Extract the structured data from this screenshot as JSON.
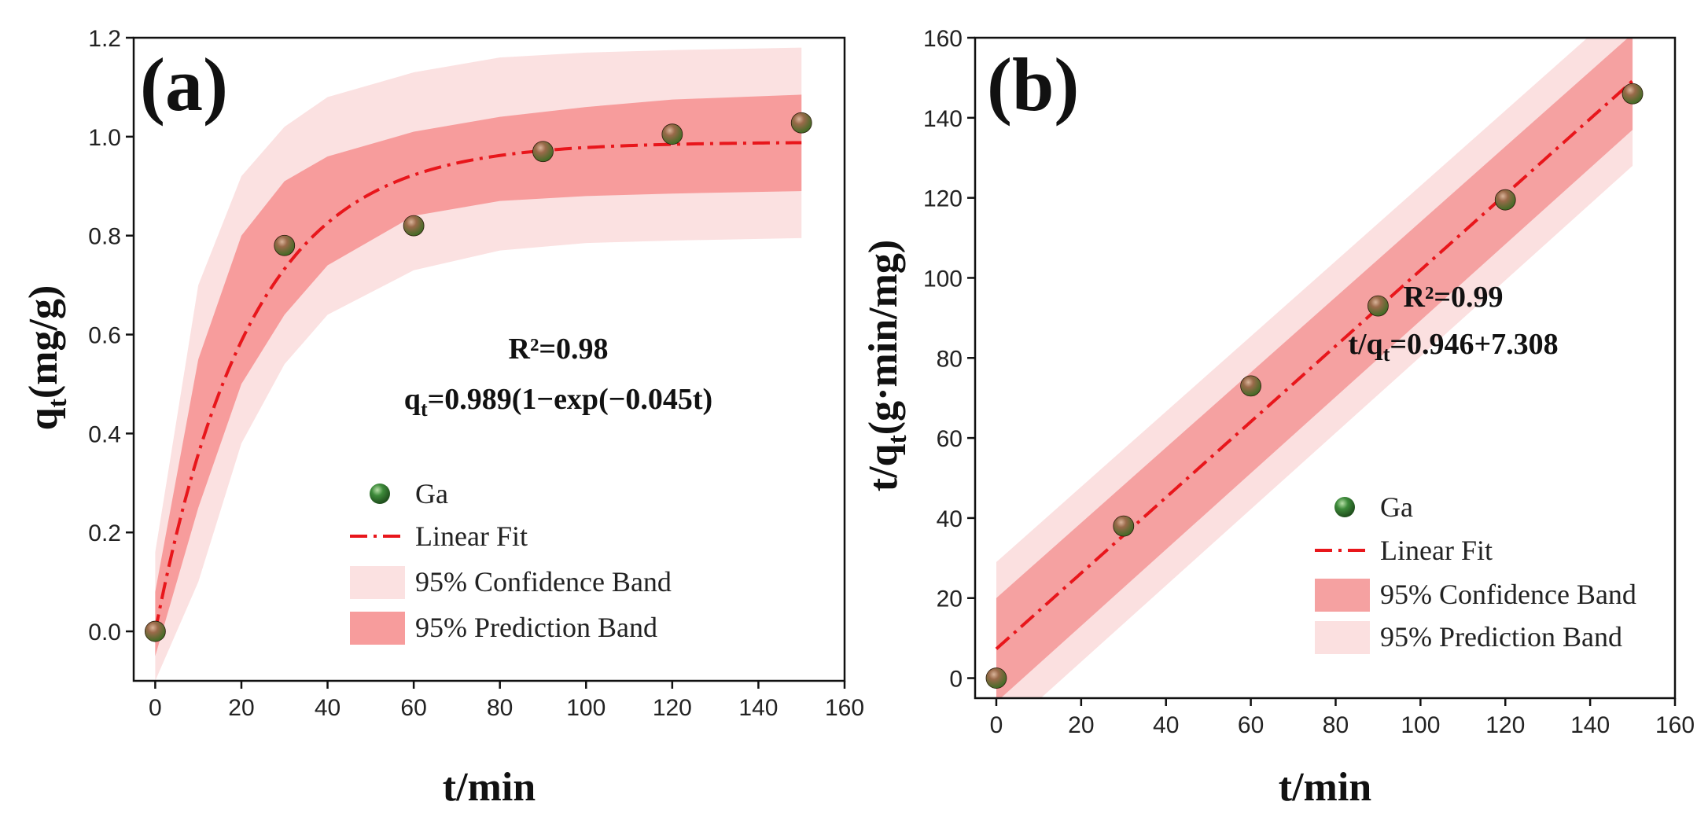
{
  "colors": {
    "prediction_band_a": "#fbe1e1",
    "confidence_band_a": "#f79c9c",
    "confidence_band_b": "#f5a1a1",
    "prediction_band_b": "#fbe0e0",
    "fit_line": "#e8161b",
    "marker_light": "#9a6a4a",
    "marker_dark": "#4a2a12",
    "marker_green": "#3d8a3a"
  },
  "chart_data": [
    {
      "type": "scatter",
      "panel_label": "(a)",
      "xlabel": "t/min",
      "ylabel_main": "q",
      "ylabel_sub": "t",
      "ylabel_tail": "(mg/g)",
      "xlim": [
        -5,
        160
      ],
      "ylim": [
        -0.1,
        1.2
      ],
      "xticks": [
        0,
        20,
        40,
        60,
        80,
        100,
        120,
        140,
        160
      ],
      "yticks": [
        0.0,
        0.2,
        0.4,
        0.6,
        0.8,
        1.0,
        1.2
      ],
      "ytick_labels": [
        "0.0",
        "0.2",
        "0.4",
        "0.6",
        "0.8",
        "1.0",
        "1.2"
      ],
      "series": [
        {
          "name": "Ga",
          "x": [
            0,
            30,
            60,
            90,
            120,
            150
          ],
          "y": [
            0.0,
            0.78,
            0.82,
            0.97,
            1.005,
            1.028
          ]
        }
      ],
      "fit": {
        "model": "pfo",
        "qe": 0.989,
        "k": 0.045,
        "x_range": [
          0,
          150
        ]
      },
      "bands": {
        "prediction": {
          "x": [
            0,
            10,
            20,
            30,
            40,
            60,
            80,
            100,
            120,
            150
          ],
          "upper": [
            0.16,
            0.7,
            0.92,
            1.02,
            1.08,
            1.13,
            1.16,
            1.17,
            1.175,
            1.18
          ],
          "lower": [
            -0.1,
            0.1,
            0.38,
            0.54,
            0.64,
            0.73,
            0.77,
            0.785,
            0.79,
            0.795
          ]
        },
        "confidence": {
          "x": [
            0,
            10,
            20,
            30,
            40,
            60,
            80,
            100,
            120,
            150
          ],
          "upper": [
            0.08,
            0.55,
            0.8,
            0.91,
            0.96,
            1.01,
            1.04,
            1.06,
            1.075,
            1.085
          ],
          "lower": [
            -0.05,
            0.25,
            0.5,
            0.64,
            0.74,
            0.84,
            0.87,
            0.88,
            0.885,
            0.89
          ]
        }
      },
      "annotations": {
        "r2": "R²=0.98",
        "equation_main": "q",
        "equation_sub": "t",
        "equation_tail": "=0.989(1−exp(−0.045t)"
      },
      "legend": {
        "position": "bottom-right",
        "entries": [
          "Ga",
          "Linear Fit",
          "95% Confidence Band",
          "95% Prediction Band"
        ]
      }
    },
    {
      "type": "scatter",
      "panel_label": "(b)",
      "xlabel": "t/min",
      "ylabel_main": "t/q",
      "ylabel_sub": "t",
      "ylabel_tail": "(g·min/mg)",
      "xlim": [
        -5,
        160
      ],
      "ylim": [
        -5,
        160
      ],
      "xticks": [
        0,
        20,
        40,
        60,
        80,
        100,
        120,
        140,
        160
      ],
      "yticks": [
        0,
        20,
        40,
        60,
        80,
        100,
        120,
        140,
        160
      ],
      "ytick_labels": [
        "0",
        "20",
        "40",
        "60",
        "80",
        "100",
        "120",
        "140",
        "160"
      ],
      "series": [
        {
          "name": "Ga",
          "x": [
            0,
            30,
            60,
            90,
            120,
            150
          ],
          "y": [
            0,
            38,
            73,
            93,
            119.5,
            146
          ]
        }
      ],
      "fit": {
        "model": "linear",
        "intercept": 7.308,
        "slope": 0.946,
        "x_range": [
          0,
          150
        ]
      },
      "bands": {
        "confidence": {
          "x": [
            0,
            150
          ],
          "upper": [
            20,
            161
          ],
          "lower": [
            -6,
            137
          ]
        },
        "prediction": {
          "x": [
            0,
            150
          ],
          "upper": [
            29,
            170
          ],
          "lower": [
            -15,
            128
          ]
        }
      },
      "annotations": {
        "r2": "R²=0.99",
        "equation_main": "t/q",
        "equation_sub": "t",
        "equation_tail": "=0.946+7.308"
      },
      "legend": {
        "position": "bottom-right",
        "entries": [
          "Ga",
          "Linear Fit",
          "95% Confidence Band",
          "95% Prediction Band"
        ]
      }
    }
  ]
}
